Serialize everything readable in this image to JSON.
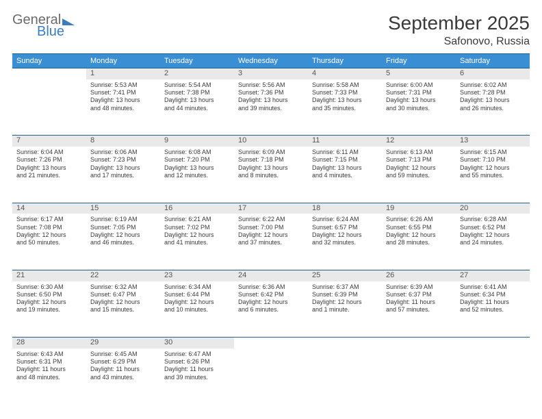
{
  "logo": {
    "word1": "General",
    "word2": "Blue"
  },
  "title": "September 2025",
  "location": "Safonovo, Russia",
  "colors": {
    "header_bg": "#3a8fd4",
    "header_text": "#ffffff",
    "border": "#1f5f8b",
    "daynum_bg": "#e9e9e9",
    "text": "#3a3a3a",
    "logo_gray": "#6b6b6b",
    "logo_blue": "#3a7ebf"
  },
  "weekdays": [
    "Sunday",
    "Monday",
    "Tuesday",
    "Wednesday",
    "Thursday",
    "Friday",
    "Saturday"
  ],
  "weeks": [
    [
      null,
      {
        "n": "1",
        "sr": "Sunrise: 5:53 AM",
        "ss": "Sunset: 7:41 PM",
        "d1": "Daylight: 13 hours",
        "d2": "and 48 minutes."
      },
      {
        "n": "2",
        "sr": "Sunrise: 5:54 AM",
        "ss": "Sunset: 7:38 PM",
        "d1": "Daylight: 13 hours",
        "d2": "and 44 minutes."
      },
      {
        "n": "3",
        "sr": "Sunrise: 5:56 AM",
        "ss": "Sunset: 7:36 PM",
        "d1": "Daylight: 13 hours",
        "d2": "and 39 minutes."
      },
      {
        "n": "4",
        "sr": "Sunrise: 5:58 AM",
        "ss": "Sunset: 7:33 PM",
        "d1": "Daylight: 13 hours",
        "d2": "and 35 minutes."
      },
      {
        "n": "5",
        "sr": "Sunrise: 6:00 AM",
        "ss": "Sunset: 7:31 PM",
        "d1": "Daylight: 13 hours",
        "d2": "and 30 minutes."
      },
      {
        "n": "6",
        "sr": "Sunrise: 6:02 AM",
        "ss": "Sunset: 7:28 PM",
        "d1": "Daylight: 13 hours",
        "d2": "and 26 minutes."
      }
    ],
    [
      {
        "n": "7",
        "sr": "Sunrise: 6:04 AM",
        "ss": "Sunset: 7:26 PM",
        "d1": "Daylight: 13 hours",
        "d2": "and 21 minutes."
      },
      {
        "n": "8",
        "sr": "Sunrise: 6:06 AM",
        "ss": "Sunset: 7:23 PM",
        "d1": "Daylight: 13 hours",
        "d2": "and 17 minutes."
      },
      {
        "n": "9",
        "sr": "Sunrise: 6:08 AM",
        "ss": "Sunset: 7:20 PM",
        "d1": "Daylight: 13 hours",
        "d2": "and 12 minutes."
      },
      {
        "n": "10",
        "sr": "Sunrise: 6:09 AM",
        "ss": "Sunset: 7:18 PM",
        "d1": "Daylight: 13 hours",
        "d2": "and 8 minutes."
      },
      {
        "n": "11",
        "sr": "Sunrise: 6:11 AM",
        "ss": "Sunset: 7:15 PM",
        "d1": "Daylight: 13 hours",
        "d2": "and 4 minutes."
      },
      {
        "n": "12",
        "sr": "Sunrise: 6:13 AM",
        "ss": "Sunset: 7:13 PM",
        "d1": "Daylight: 12 hours",
        "d2": "and 59 minutes."
      },
      {
        "n": "13",
        "sr": "Sunrise: 6:15 AM",
        "ss": "Sunset: 7:10 PM",
        "d1": "Daylight: 12 hours",
        "d2": "and 55 minutes."
      }
    ],
    [
      {
        "n": "14",
        "sr": "Sunrise: 6:17 AM",
        "ss": "Sunset: 7:08 PM",
        "d1": "Daylight: 12 hours",
        "d2": "and 50 minutes."
      },
      {
        "n": "15",
        "sr": "Sunrise: 6:19 AM",
        "ss": "Sunset: 7:05 PM",
        "d1": "Daylight: 12 hours",
        "d2": "and 46 minutes."
      },
      {
        "n": "16",
        "sr": "Sunrise: 6:21 AM",
        "ss": "Sunset: 7:02 PM",
        "d1": "Daylight: 12 hours",
        "d2": "and 41 minutes."
      },
      {
        "n": "17",
        "sr": "Sunrise: 6:22 AM",
        "ss": "Sunset: 7:00 PM",
        "d1": "Daylight: 12 hours",
        "d2": "and 37 minutes."
      },
      {
        "n": "18",
        "sr": "Sunrise: 6:24 AM",
        "ss": "Sunset: 6:57 PM",
        "d1": "Daylight: 12 hours",
        "d2": "and 32 minutes."
      },
      {
        "n": "19",
        "sr": "Sunrise: 6:26 AM",
        "ss": "Sunset: 6:55 PM",
        "d1": "Daylight: 12 hours",
        "d2": "and 28 minutes."
      },
      {
        "n": "20",
        "sr": "Sunrise: 6:28 AM",
        "ss": "Sunset: 6:52 PM",
        "d1": "Daylight: 12 hours",
        "d2": "and 24 minutes."
      }
    ],
    [
      {
        "n": "21",
        "sr": "Sunrise: 6:30 AM",
        "ss": "Sunset: 6:50 PM",
        "d1": "Daylight: 12 hours",
        "d2": "and 19 minutes."
      },
      {
        "n": "22",
        "sr": "Sunrise: 6:32 AM",
        "ss": "Sunset: 6:47 PM",
        "d1": "Daylight: 12 hours",
        "d2": "and 15 minutes."
      },
      {
        "n": "23",
        "sr": "Sunrise: 6:34 AM",
        "ss": "Sunset: 6:44 PM",
        "d1": "Daylight: 12 hours",
        "d2": "and 10 minutes."
      },
      {
        "n": "24",
        "sr": "Sunrise: 6:36 AM",
        "ss": "Sunset: 6:42 PM",
        "d1": "Daylight: 12 hours",
        "d2": "and 6 minutes."
      },
      {
        "n": "25",
        "sr": "Sunrise: 6:37 AM",
        "ss": "Sunset: 6:39 PM",
        "d1": "Daylight: 12 hours",
        "d2": "and 1 minute."
      },
      {
        "n": "26",
        "sr": "Sunrise: 6:39 AM",
        "ss": "Sunset: 6:37 PM",
        "d1": "Daylight: 11 hours",
        "d2": "and 57 minutes."
      },
      {
        "n": "27",
        "sr": "Sunrise: 6:41 AM",
        "ss": "Sunset: 6:34 PM",
        "d1": "Daylight: 11 hours",
        "d2": "and 52 minutes."
      }
    ],
    [
      {
        "n": "28",
        "sr": "Sunrise: 6:43 AM",
        "ss": "Sunset: 6:31 PM",
        "d1": "Daylight: 11 hours",
        "d2": "and 48 minutes."
      },
      {
        "n": "29",
        "sr": "Sunrise: 6:45 AM",
        "ss": "Sunset: 6:29 PM",
        "d1": "Daylight: 11 hours",
        "d2": "and 43 minutes."
      },
      {
        "n": "30",
        "sr": "Sunrise: 6:47 AM",
        "ss": "Sunset: 6:26 PM",
        "d1": "Daylight: 11 hours",
        "d2": "and 39 minutes."
      },
      null,
      null,
      null,
      null
    ]
  ]
}
